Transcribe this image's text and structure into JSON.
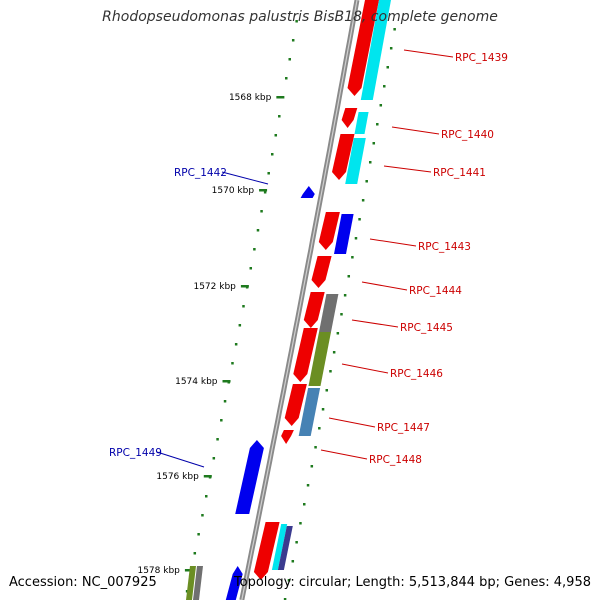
{
  "title": "Rhodopseudomonas palustris BisB18, complete genome",
  "footer": {
    "accession": "Accession: NC_007925",
    "topology": "Topology: circular; Length: 5,513,844 bp; Genes: 4,958"
  },
  "colors": {
    "backbone": "#8a8a8a",
    "tick": "#1e7a1e",
    "forward_label": "#cc0000",
    "reverse_label": "#0000aa",
    "red": "#ee0000",
    "cyan": "#00e5ee",
    "blue": "#0000ee",
    "gray": "#707070",
    "olive": "#6b8e23",
    "steelblue": "#4682b4"
  },
  "scale_labels": [
    "1568 kbp",
    "1570 kbp",
    "1572 kbp",
    "1574 kbp",
    "1576 kbp",
    "1578 kbp"
  ],
  "gene_labels": [
    {
      "text": "RPC_1439",
      "strand": "forward"
    },
    {
      "text": "RPC_1440",
      "strand": "forward"
    },
    {
      "text": "RPC_1441",
      "strand": "forward"
    },
    {
      "text": "RPC_1442",
      "strand": "reverse"
    },
    {
      "text": "RPC_1443",
      "strand": "forward"
    },
    {
      "text": "RPC_1444",
      "strand": "forward"
    },
    {
      "text": "RPC_1445",
      "strand": "forward"
    },
    {
      "text": "RPC_1446",
      "strand": "forward"
    },
    {
      "text": "RPC_1447",
      "strand": "forward"
    },
    {
      "text": "RPC_1448",
      "strand": "forward"
    },
    {
      "text": "RPC_1449",
      "strand": "reverse"
    }
  ]
}
